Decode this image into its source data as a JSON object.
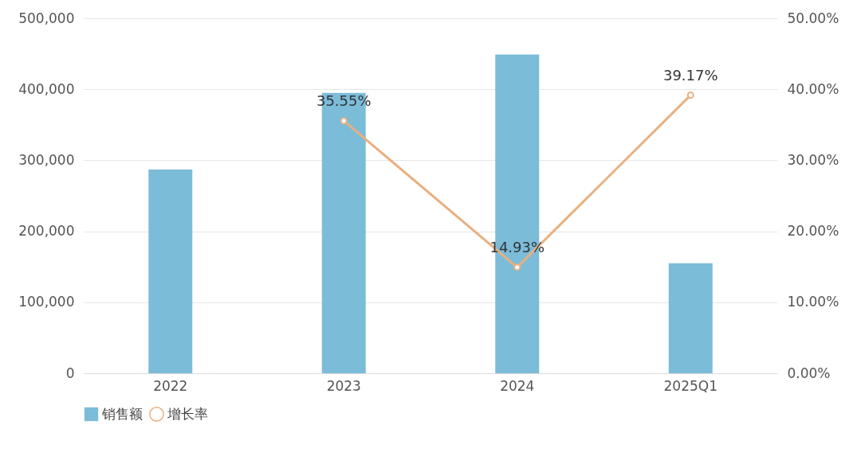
{
  "chart_data": {
    "type": "bar",
    "categories": [
      "2022",
      "2023",
      "2024",
      "2025Q1"
    ],
    "series": [
      {
        "name": "销售额",
        "color": "#7bbcd9",
        "values": [
          287000,
          395000,
          449000,
          155000
        ]
      },
      {
        "name": "增长率",
        "type": "line",
        "axis": "y2",
        "color": "#e9b07f",
        "values": [
          null,
          35.55,
          14.93,
          39.17
        ],
        "value_labels": [
          null,
          "35.55%",
          "14.93%",
          "39.17%"
        ]
      }
    ],
    "ylim": [
      0,
      500000
    ],
    "yticks": [
      0,
      {
        "value": 100000,
        "label": "100,000"
      },
      {
        "value": 200000,
        "label": "200,000"
      },
      {
        "value": 300000,
        "label": "300,000"
      },
      {
        "value": 400000,
        "label": "400,000"
      },
      {
        "value": 500000,
        "label": "500,000"
      }
    ],
    "y2lim": [
      0,
      50
    ],
    "y2ticks": [
      {
        "value": 0,
        "label": "0.00%"
      },
      {
        "value": 10,
        "label": "10.00%"
      },
      {
        "value": 20,
        "label": "20.00%"
      },
      {
        "value": 30,
        "label": "30.00%"
      },
      {
        "value": 40,
        "label": "40.00%"
      },
      {
        "value": 50,
        "label": "50.00%"
      }
    ],
    "grid": "y",
    "legend": "bottom",
    "marker": "circle"
  }
}
